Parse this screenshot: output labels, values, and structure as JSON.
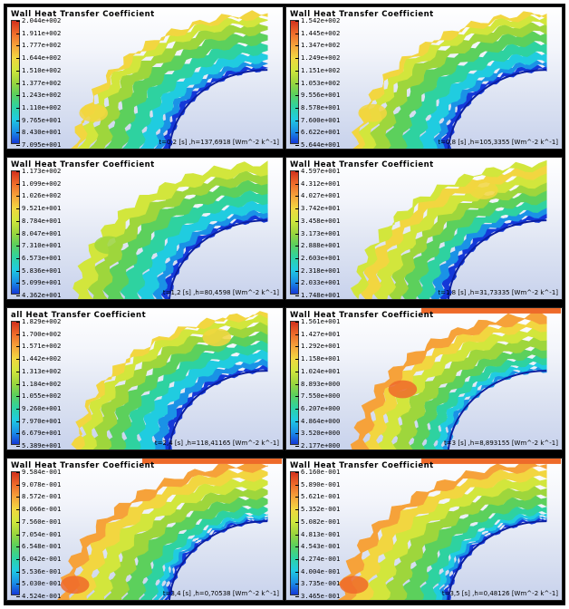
{
  "panels": [
    {
      "title": "Wall Heat Transfer Coefficient",
      "ticks": [
        "2.044e+002",
        "1.911e+002",
        "1.777e+002",
        "1.644e+002",
        "1.510e+002",
        "1.377e+002",
        "1.243e+002",
        "1.110e+002",
        "9.765e+001",
        "8.430e+001",
        "7.095e+001"
      ],
      "caption": "t=0,2 [s] ,h=137,6918 [Wm^-2 k^-1]",
      "style": "a"
    },
    {
      "title": "Wall Heat Transfer Coefficient",
      "ticks": [
        "1.542e+002",
        "1.445e+002",
        "1.347e+002",
        "1.249e+002",
        "1.151e+002",
        "1.053e+002",
        "9.556e+001",
        "8.578e+001",
        "7.600e+001",
        "6.622e+001",
        "5.644e+001"
      ],
      "caption": "t=0,8 [s] ,h=105,3355 [Wm^-2 k^-1]",
      "style": "a"
    },
    {
      "title": "Wall Heat Transfer Coefficient",
      "ticks": [
        "1.173e+002",
        "1.099e+002",
        "1.026e+002",
        "9.521e+001",
        "8.784e+001",
        "8.047e+001",
        "7.310e+001",
        "6.573e+001",
        "5.836e+001",
        "5.099e+001",
        "4.362e+001"
      ],
      "caption": "t=1,2 [s] ,h=80,4598 [Wm^-2 k^-1]",
      "style": "b"
    },
    {
      "title": "Wall Heat Transfer Coefficient",
      "ticks": [
        "4.597e+001",
        "4.312e+001",
        "4.027e+001",
        "3.742e+001",
        "3.458e+001",
        "3.173e+001",
        "2.888e+001",
        "2.603e+001",
        "2.318e+001",
        "2.033e+001",
        "1.748e+001"
      ],
      "caption": "t=1,8 [s] ,h=31,73335 [Wm^-2 k^-1]",
      "style": "c"
    },
    {
      "title": "all Heat Transfer Coefficient",
      "ticks": [
        "1.829e+002",
        "1.700e+002",
        "1.571e+002",
        "1.442e+002",
        "1.313e+002",
        "1.184e+002",
        "1.055e+002",
        "9.260e+001",
        "7.970e+001",
        "6.679e+001",
        "5.389e+001"
      ],
      "caption": "t=2,4 [s] ,h=118,41165 [Wm^-2 k^-1]",
      "style": "d"
    },
    {
      "title": "Wall Heat Transfer Coefficient",
      "ticks": [
        "1.561e+001",
        "1.427e+001",
        "1.292e+001",
        "1.158e+001",
        "1.024e+001",
        "8.893e+000",
        "7.550e+000",
        "6.207e+000",
        "4.864e+000",
        "3.520e+000",
        "2.177e+000"
      ],
      "caption": "t=3 [s] ,h=8,893155 [Wm^-2 k^-1]",
      "style": "e"
    },
    {
      "title": "Wall Heat Transfer Coefficient",
      "ticks": [
        "9.584e-001",
        "9.078e-001",
        "8.572e-001",
        "8.066e-001",
        "7.560e-001",
        "7.054e-001",
        "6.548e-001",
        "6.042e-001",
        "5.536e-001",
        "5.030e-001",
        "4.524e-001"
      ],
      "caption": "t=3,4 [s] ,h=0,70538 [Wm^-2 k^-1]",
      "style": "f"
    },
    {
      "title": "Wall Heat Transfer Coefficient",
      "ticks": [
        "6.160e-001",
        "5.890e-001",
        "5.621e-001",
        "5.352e-001",
        "5.082e-001",
        "4.813e-001",
        "4.543e-001",
        "4.274e-001",
        "4.004e-001",
        "3.735e-001",
        "3.465e-001"
      ],
      "caption": "t=3,5 [s] ,h=0,48126 [Wm^-2 k^-1]",
      "style": "f"
    }
  ],
  "colors": {
    "colormap": [
      "#d2301c",
      "#ee6a2a",
      "#f6a23a",
      "#f2d640",
      "#d2e63c",
      "#9ed63c",
      "#5cd05c",
      "#2ed2a0",
      "#20cce0",
      "#1a92e6",
      "#1438d8"
    ]
  }
}
